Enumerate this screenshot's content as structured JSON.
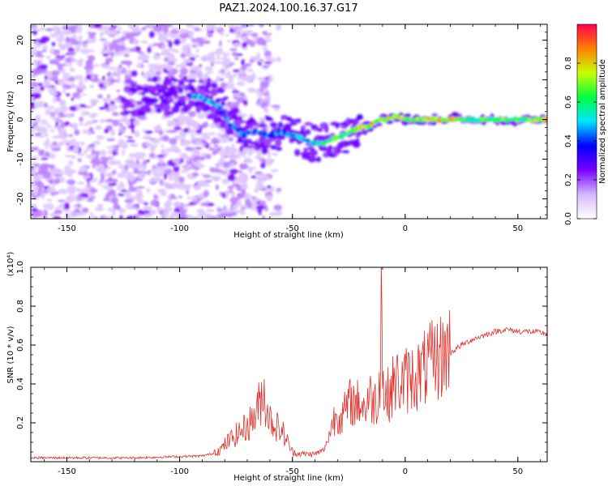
{
  "figure": {
    "title": "PAZ1.2024.100.16.37.G17"
  },
  "chart_data": [
    {
      "type": "heatmap",
      "title": "PAZ1.2024.100.16.37.G17",
      "xlabel": "Height of straight line (km)",
      "ylabel": "Frequency (Hz)",
      "xlim": [
        -166,
        63
      ],
      "ylim": [
        -25,
        24
      ],
      "xticks": [
        -150,
        -100,
        -50,
        0,
        50
      ],
      "yticks": [
        20,
        10,
        0,
        -10,
        -20
      ],
      "colorbar": {
        "label": "Normalized spectral amplitude",
        "range": [
          0,
          1
        ],
        "ticks": [
          0.0,
          0.2,
          0.4,
          0.6,
          0.8
        ],
        "colors": [
          "#ffffff",
          "#d6b8ff",
          "#7a00ff",
          "#0000ff",
          "#00e5ff",
          "#00ff40",
          "#c8ff00",
          "#ff8000",
          "#ff0050"
        ]
      },
      "ridge": {
        "x": [
          -95,
          -88,
          -82,
          -78,
          -72,
          -66,
          -60,
          -55,
          -50,
          -45,
          -40,
          -36,
          -32,
          -28,
          -24,
          -20,
          -16,
          -12,
          -8,
          -4,
          0,
          10,
          20,
          30,
          40,
          50,
          63
        ],
        "y": [
          6,
          5,
          3,
          -1,
          -4,
          -3,
          -4,
          -3,
          -4,
          -5,
          -6,
          -6,
          -5,
          -4,
          -3,
          -2,
          -2,
          0,
          0,
          1,
          0,
          0,
          0,
          0,
          0,
          0,
          0
        ],
        "amplitude": [
          0.5,
          0.55,
          0.5,
          0.45,
          0.5,
          0.45,
          0.45,
          0.45,
          0.5,
          0.55,
          0.55,
          0.6,
          0.65,
          0.65,
          0.7,
          0.75,
          0.8,
          0.75,
          0.85,
          0.8,
          0.75,
          0.8,
          0.85,
          0.6,
          0.7,
          0.65,
          0.85
        ]
      }
    },
    {
      "type": "line",
      "xlabel": "Height of straight line (km)",
      "ylabel": "SNR (10 * v/v)",
      "y_multiplier": "(x10⁴)",
      "xlim": [
        -166,
        63
      ],
      "ylim": [
        0,
        1
      ],
      "xticks": [
        -150,
        -100,
        -50,
        0,
        50
      ],
      "yticks": [
        0.2,
        0.4,
        0.6,
        0.8,
        1.0
      ],
      "color": "#e0302a",
      "series": [
        {
          "x": [
            -166,
            -120,
            -90,
            -82,
            -78,
            -74,
            -70,
            -66,
            -63,
            -60,
            -57,
            -54,
            -52,
            -50,
            -45,
            -40,
            -36,
            -34,
            -32,
            -30,
            -28,
            -26,
            -24,
            -22,
            -20,
            -18,
            -16,
            -14,
            -12,
            -11,
            -10.5,
            -10,
            -9.5,
            -9,
            -8,
            -6,
            -4,
            -2,
            0,
            2,
            4,
            6,
            8,
            10,
            12,
            15,
            20,
            25,
            30,
            35,
            40,
            45,
            50,
            55,
            63
          ],
          "y": [
            0.02,
            0.02,
            0.03,
            0.05,
            0.09,
            0.12,
            0.15,
            0.2,
            0.3,
            0.18,
            0.15,
            0.12,
            0.08,
            0.04,
            0.04,
            0.04,
            0.06,
            0.12,
            0.2,
            0.24,
            0.22,
            0.26,
            0.3,
            0.28,
            0.3,
            0.26,
            0.32,
            0.3,
            0.3,
            0.5,
            1.0,
            0.45,
            0.35,
            0.3,
            0.32,
            0.36,
            0.4,
            0.38,
            0.4,
            0.41,
            0.42,
            0.43,
            0.45,
            0.47,
            0.49,
            0.51,
            0.56,
            0.6,
            0.63,
            0.65,
            0.67,
            0.68,
            0.67,
            0.67,
            0.66
          ]
        }
      ]
    }
  ]
}
